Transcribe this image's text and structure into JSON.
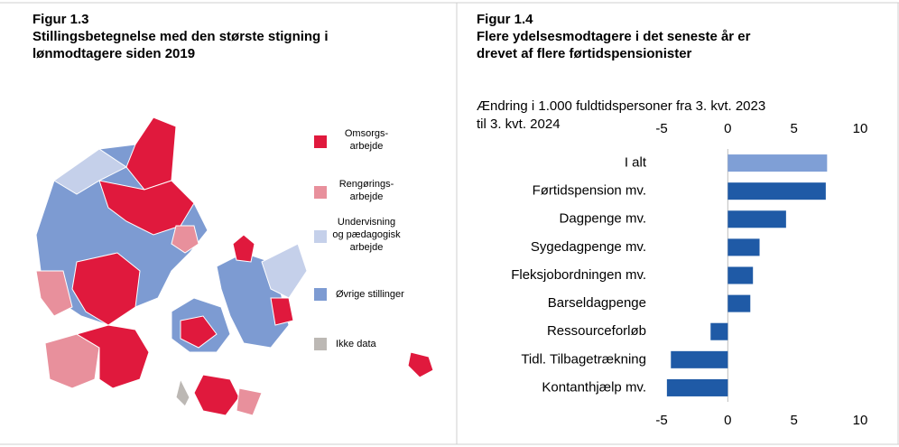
{
  "figure_1_3": {
    "figure": "Figur 1.3",
    "title_lines": [
      "Stillingsbetegnelse med den største stigning i",
      "lønmodtagere siden 2019"
    ],
    "legend": [
      {
        "lines": [
          "Omsorgs-",
          "arbejde"
        ],
        "color": "#e0193d"
      },
      {
        "lines": [
          "Rengørings-",
          "arbejde"
        ],
        "color": "#e8909c"
      },
      {
        "lines": [
          "Undervisning",
          "og pædagogisk",
          "arbejde"
        ],
        "color": "#c5d0ea"
      },
      {
        "lines": [
          "Øvrige stillinger"
        ],
        "color": "#7d9bd2"
      },
      {
        "lines": [
          "Ikke data"
        ],
        "color": "#bcb8b4"
      }
    ]
  },
  "chart_data": {
    "type": "hbar",
    "figure": "Figur 1.4",
    "title_lines": [
      "Flere ydelsesmodtagere i det seneste år er",
      "drevet af flere førtidspensionister"
    ],
    "subtitle_lines": [
      "Ændring i 1.000 fuldtidspersoner fra 3. kvt. 2023",
      "til 3. kvt. 2024"
    ],
    "categories": [
      "I alt",
      "Førtidspension mv.",
      "Dagpenge mv.",
      "Sygedagpenge mv.",
      "Fleksjobordningen mv.",
      "Barseldagpenge",
      "Ressourceforløb",
      "Tidl. Tilbagetrækning",
      "Kontanthjælp mv."
    ],
    "values": [
      7.5,
      7.4,
      4.4,
      2.4,
      1.9,
      1.7,
      -1.3,
      -4.3,
      -4.6
    ],
    "colors": [
      "#7f9fd6",
      "#1f5aa6",
      "#1f5aa6",
      "#1f5aa6",
      "#1f5aa6",
      "#1f5aa6",
      "#1f5aa6",
      "#1f5aa6",
      "#1f5aa6"
    ],
    "xlim": [
      -5,
      10
    ],
    "xticks": [
      -5,
      0,
      5,
      10
    ]
  }
}
